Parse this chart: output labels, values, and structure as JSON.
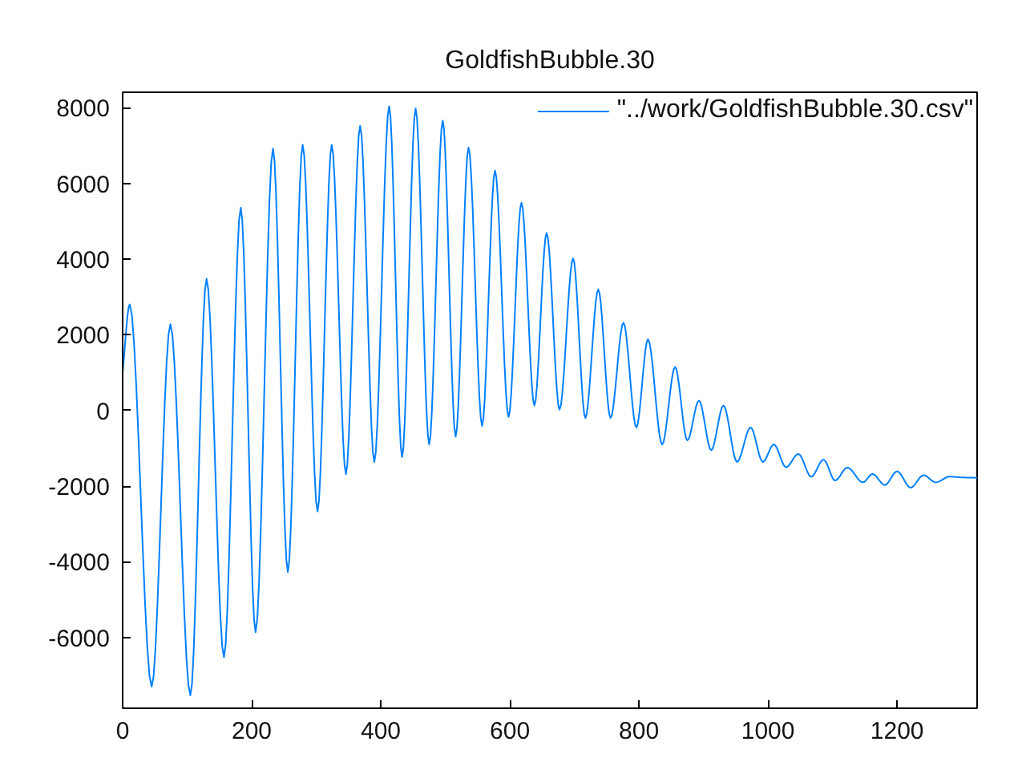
{
  "chart_data": {
    "type": "line",
    "title": "GoldfishBubble.30",
    "x": [
      0,
      11,
      45,
      74,
      105,
      130,
      157,
      183,
      206,
      233,
      256,
      279,
      302,
      324,
      346,
      368,
      390,
      413,
      433,
      454,
      475,
      496,
      516,
      536,
      557,
      577,
      598,
      618,
      638,
      657,
      677,
      698,
      717,
      737,
      756,
      776,
      796,
      814,
      836,
      856,
      875,
      893,
      912,
      931,
      952,
      973,
      992,
      1009,
      1028,
      1047,
      1067,
      1086,
      1104,
      1123,
      1147,
      1162,
      1181,
      1200,
      1221,
      1241,
      1260,
      1281,
      1301,
      1324
    ],
    "series": [
      {
        "name": "\"../work/GoldfishBubble.30.csv\"",
        "color": "#0080ff",
        "values": [
          1000,
          2800,
          -7300,
          2280,
          -7530,
          3480,
          -6520,
          5360,
          -5860,
          6920,
          -4270,
          7020,
          -2670,
          7020,
          -1680,
          7520,
          -1360,
          8040,
          -1230,
          7980,
          -900,
          7660,
          -690,
          6950,
          -410,
          6340,
          -170,
          5490,
          130,
          4690,
          20,
          4020,
          -200,
          3200,
          -200,
          2320,
          -450,
          1880,
          -900,
          1150,
          -790,
          260,
          -1050,
          130,
          -1360,
          -450,
          -1360,
          -900,
          -1500,
          -1150,
          -1750,
          -1300,
          -1850,
          -1510,
          -1900,
          -1680,
          -1970,
          -1610,
          -2040,
          -1710,
          -1900,
          -1750,
          -1770,
          -1780
        ]
      }
    ],
    "xlim": [
      0,
      1324
    ],
    "ylim": [
      -7870,
      8410
    ],
    "xticks": [
      0,
      200,
      400,
      600,
      800,
      1000,
      1200
    ],
    "yticks": [
      -6000,
      -4000,
      -2000,
      0,
      2000,
      4000,
      6000,
      8000
    ],
    "legend": "top right",
    "marker": "none",
    "line_style": "solid"
  }
}
